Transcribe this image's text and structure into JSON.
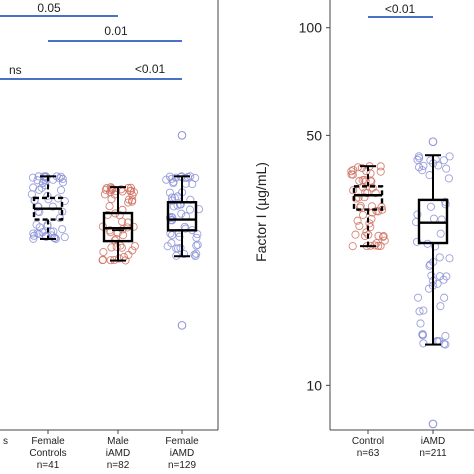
{
  "chart_data": [
    {
      "type": "box",
      "panel": "left",
      "title": "",
      "ylabel": "",
      "categories": [
        {
          "label": [
            "Female",
            "Controls",
            "n=41"
          ],
          "median": 58,
          "q1": 53,
          "q3": 63,
          "whisker_low": 44,
          "whisker_high": 73,
          "dashed": true,
          "dot_color": "#8a8fd6"
        },
        {
          "label": [
            "Male",
            "iAMD",
            "n=82"
          ],
          "median": 49,
          "q1": 43,
          "q3": 56,
          "whisker_low": 34,
          "whisker_high": 68,
          "dashed": false,
          "dot_color": "#cf6e5f",
          "mean_marker": 48
        },
        {
          "label": [
            "Female",
            "iAMD",
            "n=129"
          ],
          "median": 53,
          "q1": 48,
          "q3": 61,
          "whisker_low": 36,
          "whisker_high": 73,
          "dashed": false,
          "dot_color": "#8a8fd6",
          "outliers": [
            92,
            4
          ]
        }
      ],
      "left_cut_label": "s",
      "comparisons": [
        {
          "label": "0.05",
          "from": "off-left",
          "to": 1
        },
        {
          "label": "0.01",
          "from": 0,
          "to": 2
        },
        {
          "label": "ns",
          "from": "off-left",
          "to": 1,
          "label_side": "left"
        },
        {
          "label": "<0.01",
          "from": 1,
          "to": 2
        }
      ]
    },
    {
      "type": "box",
      "panel": "right",
      "title": "",
      "ylabel": "Factor I (µg/mL)",
      "yscale": "log",
      "ylim": [
        7.5,
        115
      ],
      "yticks": [
        10,
        50,
        100
      ],
      "categories": [
        {
          "label": [
            "Control",
            "n=63"
          ],
          "median": 34,
          "q1": 31,
          "q3": 36,
          "whisker_low": 24.5,
          "whisker_high": 41,
          "dashed": true,
          "dot_color": "#cf6e5f"
        },
        {
          "label": [
            "iAMD",
            "n=211"
          ],
          "median": 28.5,
          "q1": 25,
          "q3": 33,
          "whisker_low": 13,
          "whisker_high": 44,
          "dashed": false,
          "dot_color": "#8a8fd6",
          "outliers": [
            48,
            7.8
          ]
        }
      ],
      "comparisons": [
        {
          "label": "<0.01",
          "from": 0,
          "to": 1
        }
      ]
    }
  ]
}
